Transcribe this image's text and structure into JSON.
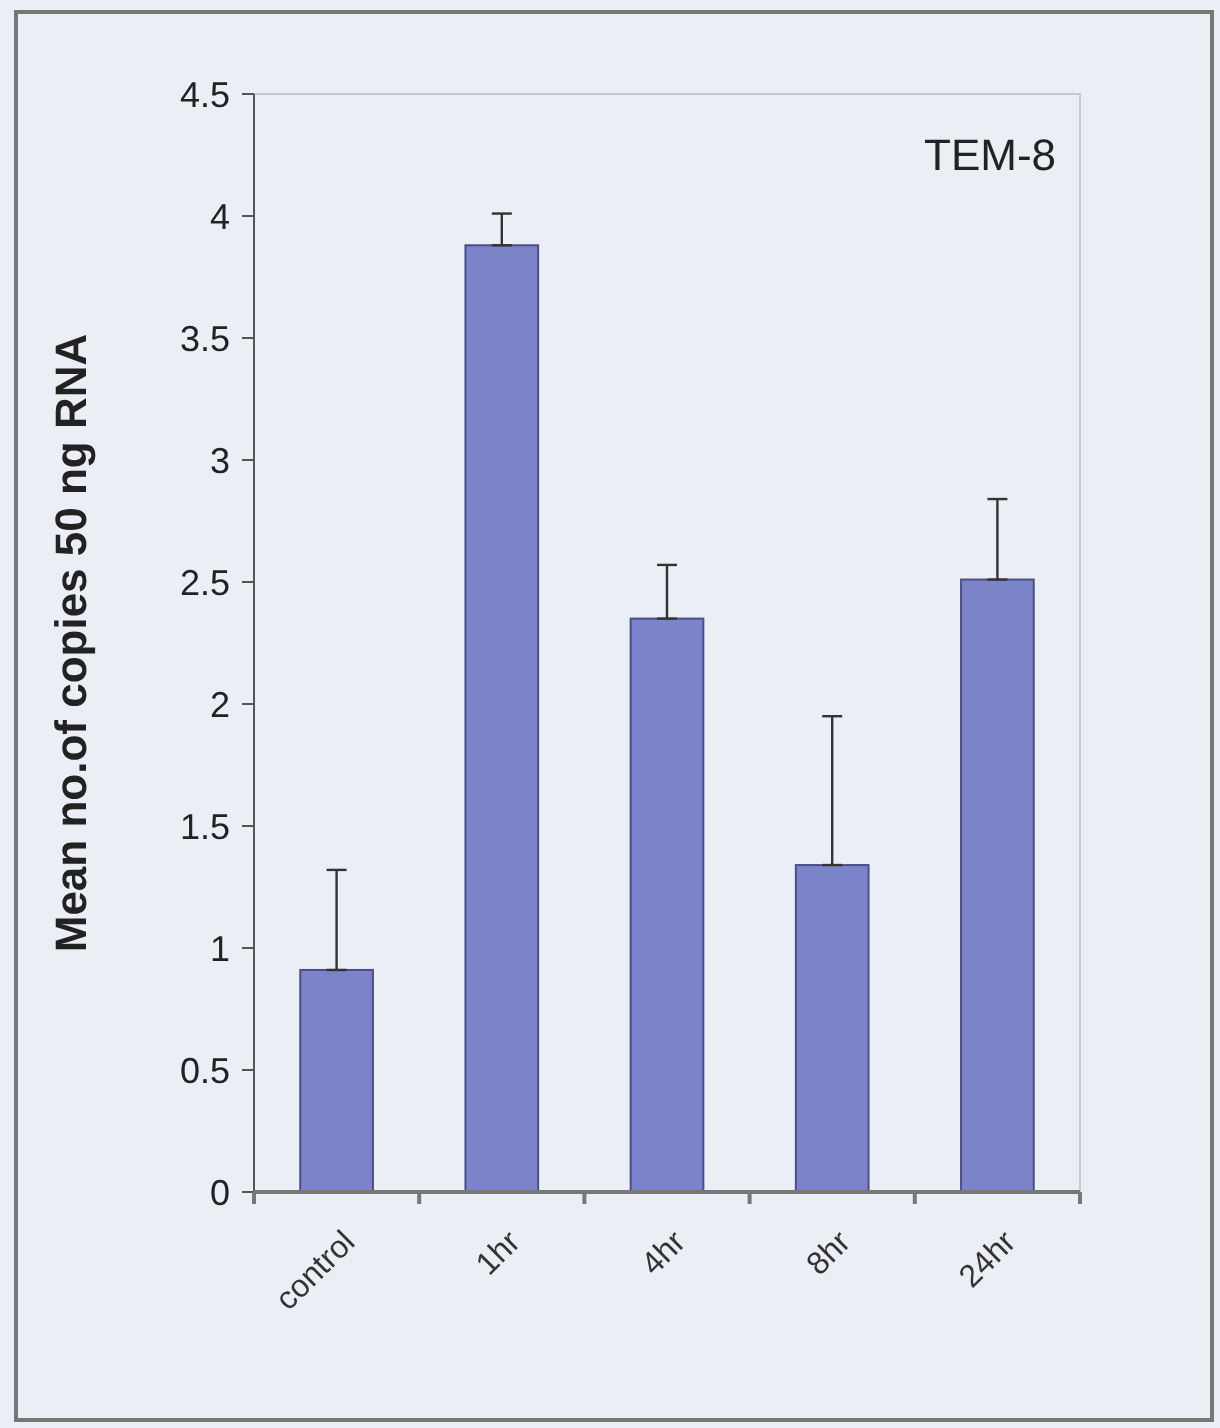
{
  "chart_data": {
    "type": "bar",
    "title": "TEM-8",
    "ylabel": "Mean no.of copies 50 ng RNA",
    "categories": [
      "control",
      "1hr",
      "4hr",
      "8hr",
      "24hr"
    ],
    "values": [
      0.91,
      3.88,
      2.35,
      1.34,
      2.51
    ],
    "errors": [
      [
        0.91,
        1.32
      ],
      [
        3.88,
        4.01
      ],
      [
        2.35,
        2.57
      ],
      [
        1.34,
        1.95
      ],
      [
        2.51,
        2.84
      ]
    ],
    "color": "#7b84c8",
    "ylim": [
      0,
      4.5
    ],
    "yticks": [
      0,
      0.5,
      1,
      1.5,
      2,
      2.5,
      3,
      3.5,
      4,
      4.5
    ],
    "grid": false
  }
}
